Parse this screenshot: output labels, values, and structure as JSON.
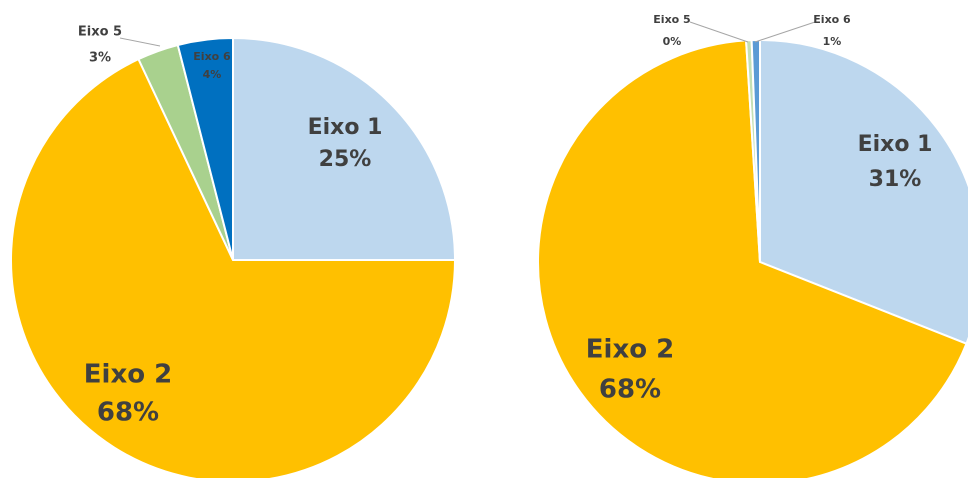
{
  "chart_data": [
    {
      "type": "pie",
      "categories": [
        "Eixo 1",
        "Eixo 2",
        "Eixo 5",
        "Eixo 6"
      ],
      "values": [
        25,
        68,
        3,
        4
      ],
      "value_labels": [
        "25%",
        "68%",
        "3%",
        "4%"
      ],
      "colors": [
        "#BDD7EE",
        "#FFC000",
        "#A9D18E",
        "#0070C0"
      ]
    },
    {
      "type": "pie",
      "categories": [
        "Eixo 1",
        "Eixo 2",
        "Eixo 5",
        "Eixo 6"
      ],
      "values": [
        31,
        68,
        0.4,
        0.6
      ],
      "value_labels": [
        "31%",
        "68%",
        "0%",
        "1%"
      ],
      "colors": [
        "#BDD7EE",
        "#FFC000",
        "#C5E0B4",
        "#5B9BD5"
      ]
    }
  ]
}
